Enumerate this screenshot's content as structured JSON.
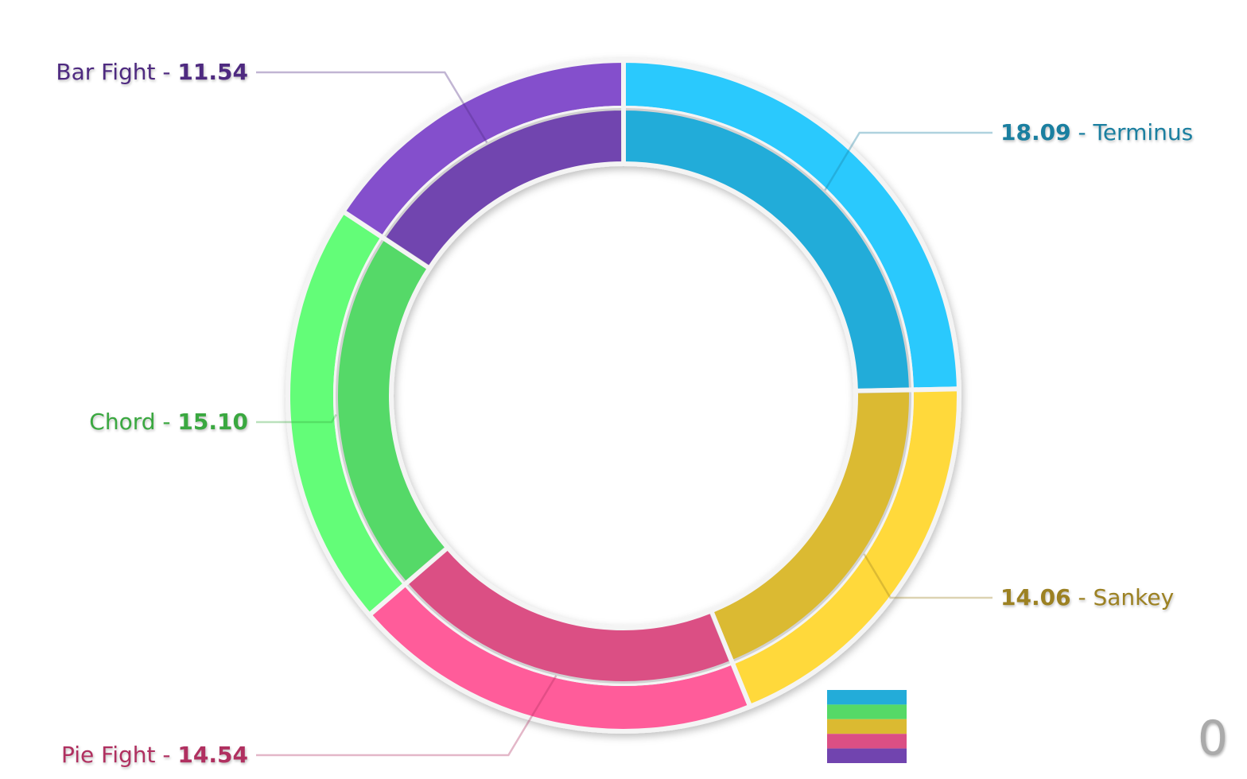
{
  "chart_data": {
    "type": "donut",
    "categories": [
      "Terminus",
      "Sankey",
      "Pie Fight",
      "Chord",
      "Bar Fight"
    ],
    "values": [
      18.09,
      14.06,
      14.54,
      15.1,
      11.54
    ],
    "value_labels": [
      "18.09",
      "14.06",
      "14.54",
      "15.10",
      "11.54"
    ],
    "colors": [
      "#29c9fd",
      "#ffd93a",
      "#ff5c9a",
      "#63fd78",
      "#8450cc"
    ],
    "label_colors": [
      "#1a7fa0",
      "#9c8122",
      "#b03060",
      "#3aa840",
      "#4e2a80"
    ],
    "annotation": "0"
  }
}
